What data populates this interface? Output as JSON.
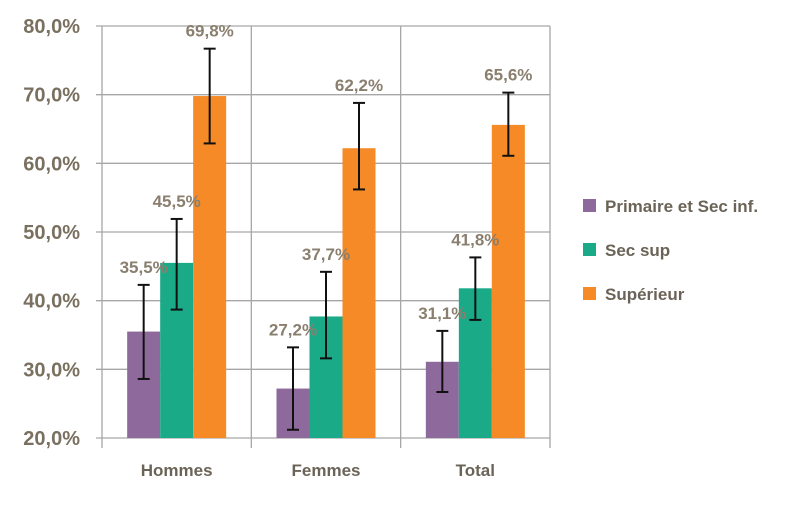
{
  "chart_data": {
    "type": "bar",
    "categories": [
      "Hommes",
      "Femmes",
      "Total"
    ],
    "series": [
      {
        "name": "Primaire et Sec inf.",
        "color": "#8e6a9c",
        "values": [
          35.5,
          27.2,
          31.1
        ],
        "labels": [
          "35,5%",
          "27,2%",
          "31,1%"
        ],
        "err_low": [
          28.6,
          21.2,
          26.7
        ],
        "err_high": [
          42.3,
          33.2,
          35.6
        ]
      },
      {
        "name": "Sec sup",
        "color": "#1aaa87",
        "values": [
          45.5,
          37.7,
          41.8
        ],
        "labels": [
          "45,5%",
          "37,7%",
          "41,8%"
        ],
        "err_low": [
          38.7,
          31.6,
          37.2
        ],
        "err_high": [
          51.9,
          44.2,
          46.3
        ]
      },
      {
        "name": "Supérieur",
        "color": "#f58a26",
        "values": [
          69.8,
          62.2,
          65.6
        ],
        "labels": [
          "69,8%",
          "62,2%",
          "65,6%"
        ],
        "err_low": [
          62.9,
          56.2,
          61.1
        ],
        "err_high": [
          76.7,
          68.8,
          70.3
        ]
      }
    ],
    "ylim": [
      20,
      80
    ],
    "yticks": [
      20,
      30,
      40,
      50,
      60,
      70,
      80
    ],
    "ytick_labels": [
      "20,0%",
      "30,0%",
      "40,0%",
      "50,0%",
      "60,0%",
      "70,0%",
      "80,0%"
    ],
    "title": "",
    "xlabel": "",
    "ylabel": "",
    "grid": true,
    "error_bars": true,
    "legend_position": "right",
    "grid_color": "#a6a6a6"
  }
}
